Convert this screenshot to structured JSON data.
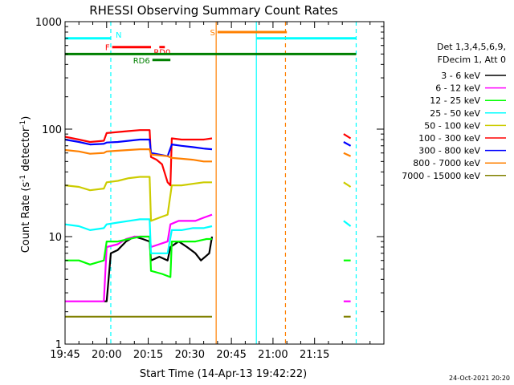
{
  "chart_data": {
    "type": "line",
    "title": "RHESSI Observing Summary Count Rates",
    "xlabel": "Start Time (14-Apr-13 19:42:22)",
    "ylabel_main": "Count Rate (s",
    "ylabel_sup1": "-1",
    "ylabel_mid": " detector",
    "ylabel_sup2": "-1",
    "ylabel_end": ")",
    "yscale": "log",
    "ylim": [
      1,
      1000
    ],
    "xlim_min": [
      1185,
      1300
    ],
    "x_ticks": [
      {
        "min": 1185,
        "label": "19:45"
      },
      {
        "min": 1200,
        "label": "20:00"
      },
      {
        "min": 1215,
        "label": "20:15"
      },
      {
        "min": 1230,
        "label": "20:30"
      },
      {
        "min": 1245,
        "label": "20:45"
      },
      {
        "min": 1260,
        "label": "21:00"
      },
      {
        "min": 1275,
        "label": "21:15"
      }
    ],
    "y_ticks": [
      {
        "value": 1,
        "label": "1"
      },
      {
        "value": 10,
        "label": "10"
      },
      {
        "value": 100,
        "label": "100"
      },
      {
        "value": 1000,
        "label": "1000"
      }
    ],
    "legend_header": [
      "Det 1,3,4,5,6,9,",
      "FDecim 1, Att 0"
    ],
    "series": [
      {
        "name": "3 - 6 keV",
        "color": "#000000",
        "segments": [
          [
            [
              1199,
              2.5
            ],
            [
              1200,
              2.5
            ],
            [
              1201.5,
              7
            ],
            [
              1204,
              7.5
            ],
            [
              1207,
              9
            ],
            [
              1210,
              10
            ],
            [
              1213,
              9.5
            ],
            [
              1215.5,
              9
            ],
            [
              1216,
              6
            ],
            [
              1219,
              6.5
            ],
            [
              1222,
              6
            ],
            [
              1223,
              8
            ],
            [
              1226,
              9
            ],
            [
              1229,
              8
            ],
            [
              1232,
              7
            ],
            [
              1234,
              6
            ],
            [
              1237,
              7
            ],
            [
              1238,
              10
            ]
          ]
        ]
      },
      {
        "name": "6 - 12 keV",
        "color": "#ff00ff",
        "segments": [
          [
            [
              1185,
              2.5
            ],
            [
              1199,
              2.5
            ],
            [
              1200,
              8
            ],
            [
              1204,
              8.5
            ],
            [
              1207,
              9.5
            ],
            [
              1210,
              10
            ],
            [
              1213,
              10
            ],
            [
              1215.5,
              10
            ],
            [
              1216,
              8
            ],
            [
              1219,
              8.5
            ],
            [
              1222,
              9
            ],
            [
              1223,
              13
            ],
            [
              1226,
              14
            ],
            [
              1229,
              14
            ],
            [
              1232,
              14
            ],
            [
              1235,
              15
            ],
            [
              1238,
              16
            ]
          ],
          [
            [
              1285.5,
              2.5
            ],
            [
              1288,
              2.5
            ]
          ]
        ]
      },
      {
        "name": "12 - 25 keV",
        "color": "#00ff00",
        "segments": [
          [
            [
              1185,
              6
            ],
            [
              1190,
              6
            ],
            [
              1194,
              5.5
            ],
            [
              1199,
              6
            ],
            [
              1200,
              9
            ],
            [
              1204,
              9
            ],
            [
              1208,
              9.5
            ],
            [
              1212,
              10
            ],
            [
              1215.5,
              10
            ],
            [
              1216,
              4.8
            ],
            [
              1220,
              4.5
            ],
            [
              1223,
              4.2
            ],
            [
              1223.5,
              9
            ],
            [
              1226,
              9
            ],
            [
              1229,
              9
            ],
            [
              1232,
              9
            ],
            [
              1236,
              9.5
            ],
            [
              1238,
              9.5
            ]
          ],
          [
            [
              1285.5,
              6
            ],
            [
              1288,
              6
            ]
          ]
        ]
      },
      {
        "name": "25 - 50 keV",
        "color": "#00ffff",
        "segments": [
          [
            [
              1185,
              13
            ],
            [
              1190,
              12.5
            ],
            [
              1194,
              11.5
            ],
            [
              1199,
              12
            ],
            [
              1200,
              13
            ],
            [
              1204,
              13.5
            ],
            [
              1208,
              14
            ],
            [
              1212,
              14.5
            ],
            [
              1215.5,
              14.5
            ],
            [
              1216,
              7
            ],
            [
              1219,
              7
            ],
            [
              1222,
              7
            ],
            [
              1223.5,
              11.5
            ],
            [
              1227,
              11.5
            ],
            [
              1231,
              12
            ],
            [
              1235,
              12
            ],
            [
              1238,
              12.5
            ]
          ],
          [
            [
              1285.5,
              14
            ],
            [
              1288,
              12.5
            ]
          ]
        ]
      },
      {
        "name": "50 - 100 keV",
        "color": "#cccc00",
        "segments": [
          [
            [
              1185,
              30
            ],
            [
              1190,
              29
            ],
            [
              1194,
              27
            ],
            [
              1199,
              28
            ],
            [
              1200,
              32
            ],
            [
              1204,
              33
            ],
            [
              1208,
              35
            ],
            [
              1212,
              36
            ],
            [
              1215.5,
              36
            ],
            [
              1216,
              14
            ],
            [
              1219,
              15
            ],
            [
              1222,
              16
            ],
            [
              1223.5,
              30
            ],
            [
              1227,
              30
            ],
            [
              1231,
              31
            ],
            [
              1235,
              32
            ],
            [
              1238,
              32
            ]
          ],
          [
            [
              1285.5,
              32
            ],
            [
              1288,
              29
            ]
          ]
        ]
      },
      {
        "name": "100 - 300 keV",
        "color": "#ff0000",
        "segments": [
          [
            [
              1185,
              85
            ],
            [
              1190,
              80
            ],
            [
              1194,
              76
            ],
            [
              1199,
              78
            ],
            [
              1200,
              92
            ],
            [
              1204,
              94
            ],
            [
              1208,
              96
            ],
            [
              1212,
              98
            ],
            [
              1215.5,
              98
            ],
            [
              1216,
              55
            ],
            [
              1218,
              52
            ],
            [
              1220,
              47
            ],
            [
              1222,
              32
            ],
            [
              1223,
              30
            ],
            [
              1223.5,
              82
            ],
            [
              1227,
              80
            ],
            [
              1231,
              80
            ],
            [
              1235,
              80
            ],
            [
              1238,
              82
            ]
          ],
          [
            [
              1285.5,
              90
            ],
            [
              1288,
              82
            ]
          ]
        ]
      },
      {
        "name": "300 - 800 keV",
        "color": "#0000ff",
        "segments": [
          [
            [
              1185,
              80
            ],
            [
              1190,
              76
            ],
            [
              1194,
              72
            ],
            [
              1199,
              73
            ],
            [
              1200,
              75
            ],
            [
              1204,
              76
            ],
            [
              1208,
              78
            ],
            [
              1212,
              80
            ],
            [
              1215.5,
              80
            ],
            [
              1216,
              60
            ],
            [
              1219,
              58
            ],
            [
              1222,
              56
            ],
            [
              1223.5,
              72
            ],
            [
              1227,
              70
            ],
            [
              1231,
              68
            ],
            [
              1235,
              66
            ],
            [
              1238,
              65
            ]
          ],
          [
            [
              1285.5,
              76
            ],
            [
              1288,
              70
            ]
          ]
        ]
      },
      {
        "name": "800 - 7000 keV",
        "color": "#ff8000",
        "segments": [
          [
            [
              1185,
              64
            ],
            [
              1190,
              62
            ],
            [
              1194,
              59
            ],
            [
              1199,
              60
            ],
            [
              1200,
              62
            ],
            [
              1204,
              63
            ],
            [
              1208,
              64
            ],
            [
              1212,
              65
            ],
            [
              1215.5,
              65
            ],
            [
              1216,
              58
            ],
            [
              1219,
              57
            ],
            [
              1222,
              56
            ],
            [
              1223.5,
              54
            ],
            [
              1227,
              53
            ],
            [
              1231,
              52
            ],
            [
              1235,
              50
            ],
            [
              1238,
              50
            ]
          ],
          [
            [
              1285.5,
              60
            ],
            [
              1288,
              56
            ]
          ]
        ]
      },
      {
        "name": "7000 - 15000 keV",
        "color": "#808000",
        "segments": [
          [
            [
              1185,
              1.8
            ],
            [
              1199,
              1.8
            ],
            [
              1200,
              1.8
            ],
            [
              1215.5,
              1.8
            ],
            [
              1216,
              1.8
            ],
            [
              1238,
              1.8
            ]
          ],
          [
            [
              1285.5,
              1.8
            ],
            [
              1288,
              1.8
            ]
          ]
        ]
      }
    ],
    "vlines": [
      {
        "min": 1201.5,
        "color": "#00ffff",
        "style": "dashed"
      },
      {
        "min": 1239.5,
        "color": "#ff8000",
        "style": "solid"
      },
      {
        "min": 1254,
        "color": "#00ffff",
        "style": "solid"
      },
      {
        "min": 1264.5,
        "color": "#ff8000",
        "style": "dashed"
      },
      {
        "min": 1290,
        "color": "#00ffff",
        "style": "dashed"
      }
    ],
    "flag_bars": [
      {
        "label": "N",
        "color": "#00ffff",
        "y": 700,
        "from": 1185,
        "to": 1201.5,
        "label_side": "right"
      },
      {
        "label": "F",
        "color": "#ff0000",
        "y": 580,
        "from": 1202,
        "to": 1216,
        "label_side": "left"
      },
      {
        "label": "RD0",
        "color": "#ff0000",
        "y": 580,
        "from": 1219,
        "to": 1221,
        "label_side": "below"
      },
      {
        "label": "",
        "color": "#008000",
        "y": 500,
        "from": 1185,
        "to": 1290,
        "label_side": "none"
      },
      {
        "label": "RD6",
        "color": "#008000",
        "y": 440,
        "from": 1216.5,
        "to": 1223,
        "label_side": "left"
      },
      {
        "label": "S",
        "color": "#ff8000",
        "y": 800,
        "from": 1240,
        "to": 1265,
        "label_side": "left"
      },
      {
        "label": "",
        "color": "#00ffff",
        "y": 700,
        "from": 1254,
        "to": 1290,
        "label_side": "none"
      }
    ]
  },
  "footer_date": "24-Oct-2021 20:20"
}
